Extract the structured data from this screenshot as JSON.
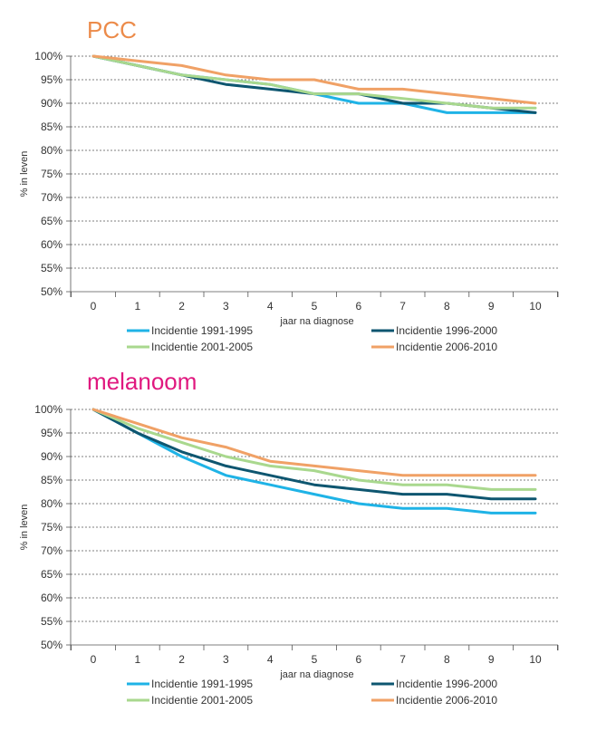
{
  "colors": {
    "pcc_title": "#EC8B4A",
    "melanoom_title": "#E0187F",
    "grid": "#555555",
    "series": [
      "#1FB3E6",
      "#0E5670",
      "#A9D88E",
      "#F0A166"
    ]
  },
  "chart_data": [
    {
      "type": "line",
      "title": "PCC",
      "xlabel": "jaar na diagnose",
      "ylabel": "% in leven",
      "x": [
        0,
        1,
        2,
        3,
        4,
        5,
        6,
        7,
        8,
        9,
        10
      ],
      "x_ticks": [
        "0",
        "1",
        "2",
        "3",
        "4",
        "5",
        "6",
        "7",
        "8",
        "9",
        "10"
      ],
      "y_ticks": [
        "50%",
        "55%",
        "60%",
        "65%",
        "70%",
        "75%",
        "80%",
        "85%",
        "90%",
        "95%",
        "100%"
      ],
      "ylim": [
        50,
        100
      ],
      "grid": "horizontal dashed",
      "legend_position": "bottom",
      "series": [
        {
          "name": "Incidentie 1991-1995",
          "values": [
            100,
            98,
            96,
            95,
            94,
            92,
            90,
            90,
            88,
            88,
            88
          ]
        },
        {
          "name": "Incidentie 1996-2000",
          "values": [
            100,
            98,
            96,
            94,
            93,
            92,
            92,
            90,
            90,
            89,
            88
          ]
        },
        {
          "name": "Incidentie 2001-2005",
          "values": [
            100,
            98,
            96,
            95,
            94,
            92,
            92,
            91,
            90,
            89,
            89
          ]
        },
        {
          "name": "Incidentie 2006-2010",
          "values": [
            100,
            99,
            98,
            96,
            95,
            95,
            93,
            93,
            92,
            91,
            90
          ]
        }
      ]
    },
    {
      "type": "line",
      "title": "melanoom",
      "xlabel": "jaar na diagnose",
      "ylabel": "% in leven",
      "x": [
        0,
        1,
        2,
        3,
        4,
        5,
        6,
        7,
        8,
        9,
        10
      ],
      "x_ticks": [
        "0",
        "1",
        "2",
        "3",
        "4",
        "5",
        "6",
        "7",
        "8",
        "9",
        "10"
      ],
      "y_ticks": [
        "50%",
        "55%",
        "60%",
        "65%",
        "70%",
        "75%",
        "80%",
        "85%",
        "90%",
        "95%",
        "100%"
      ],
      "ylim": [
        50,
        100
      ],
      "grid": "horizontal dashed",
      "legend_position": "bottom",
      "series": [
        {
          "name": "Incidentie 1991-1995",
          "values": [
            100,
            95,
            90,
            86,
            84,
            82,
            80,
            79,
            79,
            78,
            78
          ]
        },
        {
          "name": "Incidentie 1996-2000",
          "values": [
            100,
            95,
            91,
            88,
            86,
            84,
            83,
            82,
            82,
            81,
            81
          ]
        },
        {
          "name": "Incidentie 2001-2005",
          "values": [
            100,
            96,
            93,
            90,
            88,
            87,
            85,
            84,
            84,
            83,
            83
          ]
        },
        {
          "name": "Incidentie 2006-2010",
          "values": [
            100,
            97,
            94,
            92,
            89,
            88,
            87,
            86,
            86,
            86,
            86
          ]
        }
      ]
    }
  ]
}
